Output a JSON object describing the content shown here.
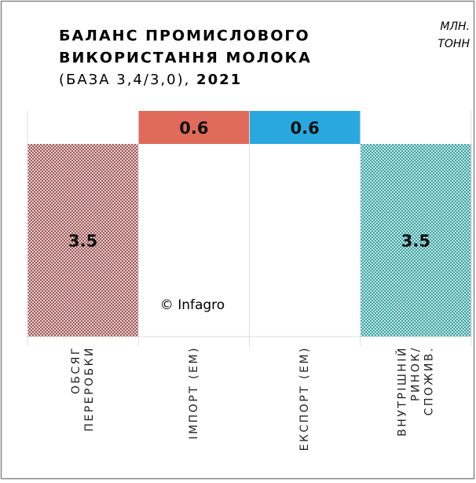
{
  "chart_data": {
    "type": "waterfall",
    "title": [
      "БАЛАНС ПРОМИСЛОВОГО",
      "ВИКОРИСТАННЯ МОЛОКА"
    ],
    "subtitle": "(БАЗА 3,4/3,0), ",
    "subtitle_bold": "2021",
    "units": [
      "МЛН.",
      "ТОНН"
    ],
    "watermark": "© Infagro",
    "categories": [
      [
        "ОБСЯГ",
        "ПЕРЕРОБКИ"
      ],
      [
        "ІМПОРТ (ЕМ)"
      ],
      [
        "ЕКСПОРТ (ЕМ)"
      ],
      [
        "ВНУТРІШНІЙ",
        "РИНОК/",
        "СПОЖИВ."
      ]
    ],
    "values": [
      3.5,
      0.6,
      -0.6,
      3.5
    ],
    "value_labels": [
      "3.5",
      "0.6",
      "0.6",
      "3.5"
    ],
    "measure": [
      "absolute",
      "relative",
      "relative",
      "absolute"
    ],
    "colors": [
      "#9c4a4a",
      "#e06b5a",
      "#29a8e0",
      "#2a9d9d"
    ],
    "patterned": [
      true,
      false,
      false,
      true
    ],
    "ylim": [
      0,
      4.1
    ]
  }
}
